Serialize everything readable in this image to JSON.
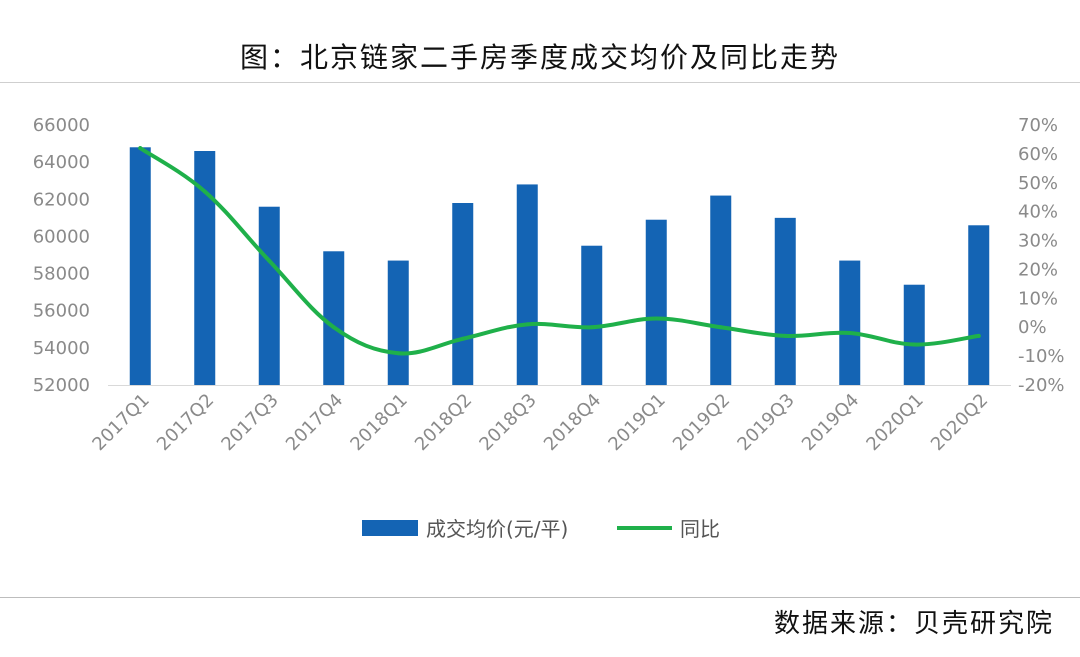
{
  "title": "图：北京链家二手房季度成交均价及同比走势",
  "source": "数据来源：贝壳研究院",
  "colors": {
    "bar": "#1464b4",
    "line": "#1fb04a",
    "axis": "#8a8a8a"
  },
  "chart_data": {
    "type": "bar+line",
    "categories": [
      "2017Q1",
      "2017Q2",
      "2017Q3",
      "2017Q4",
      "2018Q1",
      "2018Q2",
      "2018Q3",
      "2018Q4",
      "2019Q1",
      "2019Q2",
      "2019Q3",
      "2019Q4",
      "2020Q1",
      "2020Q2"
    ],
    "series": [
      {
        "name": "成交均价(元/平)",
        "type": "bar",
        "axis": "left",
        "values": [
          64800,
          64600,
          61600,
          59200,
          58700,
          61800,
          62800,
          59500,
          60900,
          62200,
          61000,
          58700,
          57400,
          60600
        ]
      },
      {
        "name": "同比",
        "type": "line",
        "axis": "right",
        "values": [
          62,
          47,
          23,
          0,
          -9,
          -4,
          1,
          0,
          3,
          0,
          -3,
          -2,
          -6,
          -3
        ]
      }
    ],
    "y_left": {
      "min": 52000,
      "max": 66000,
      "ticks": [
        "66000",
        "64000",
        "62000",
        "60000",
        "58000",
        "56000",
        "54000",
        "52000"
      ]
    },
    "y_right": {
      "min": -20,
      "max": 70,
      "ticks": [
        "70%",
        "60%",
        "50%",
        "40%",
        "30%",
        "20%",
        "10%",
        "0%",
        "-10%",
        "-20%"
      ]
    },
    "legend": [
      {
        "label": "成交均价(元/平)",
        "kind": "bar"
      },
      {
        "label": "同比",
        "kind": "line"
      }
    ],
    "legend_position": "bottom",
    "grid": false
  }
}
